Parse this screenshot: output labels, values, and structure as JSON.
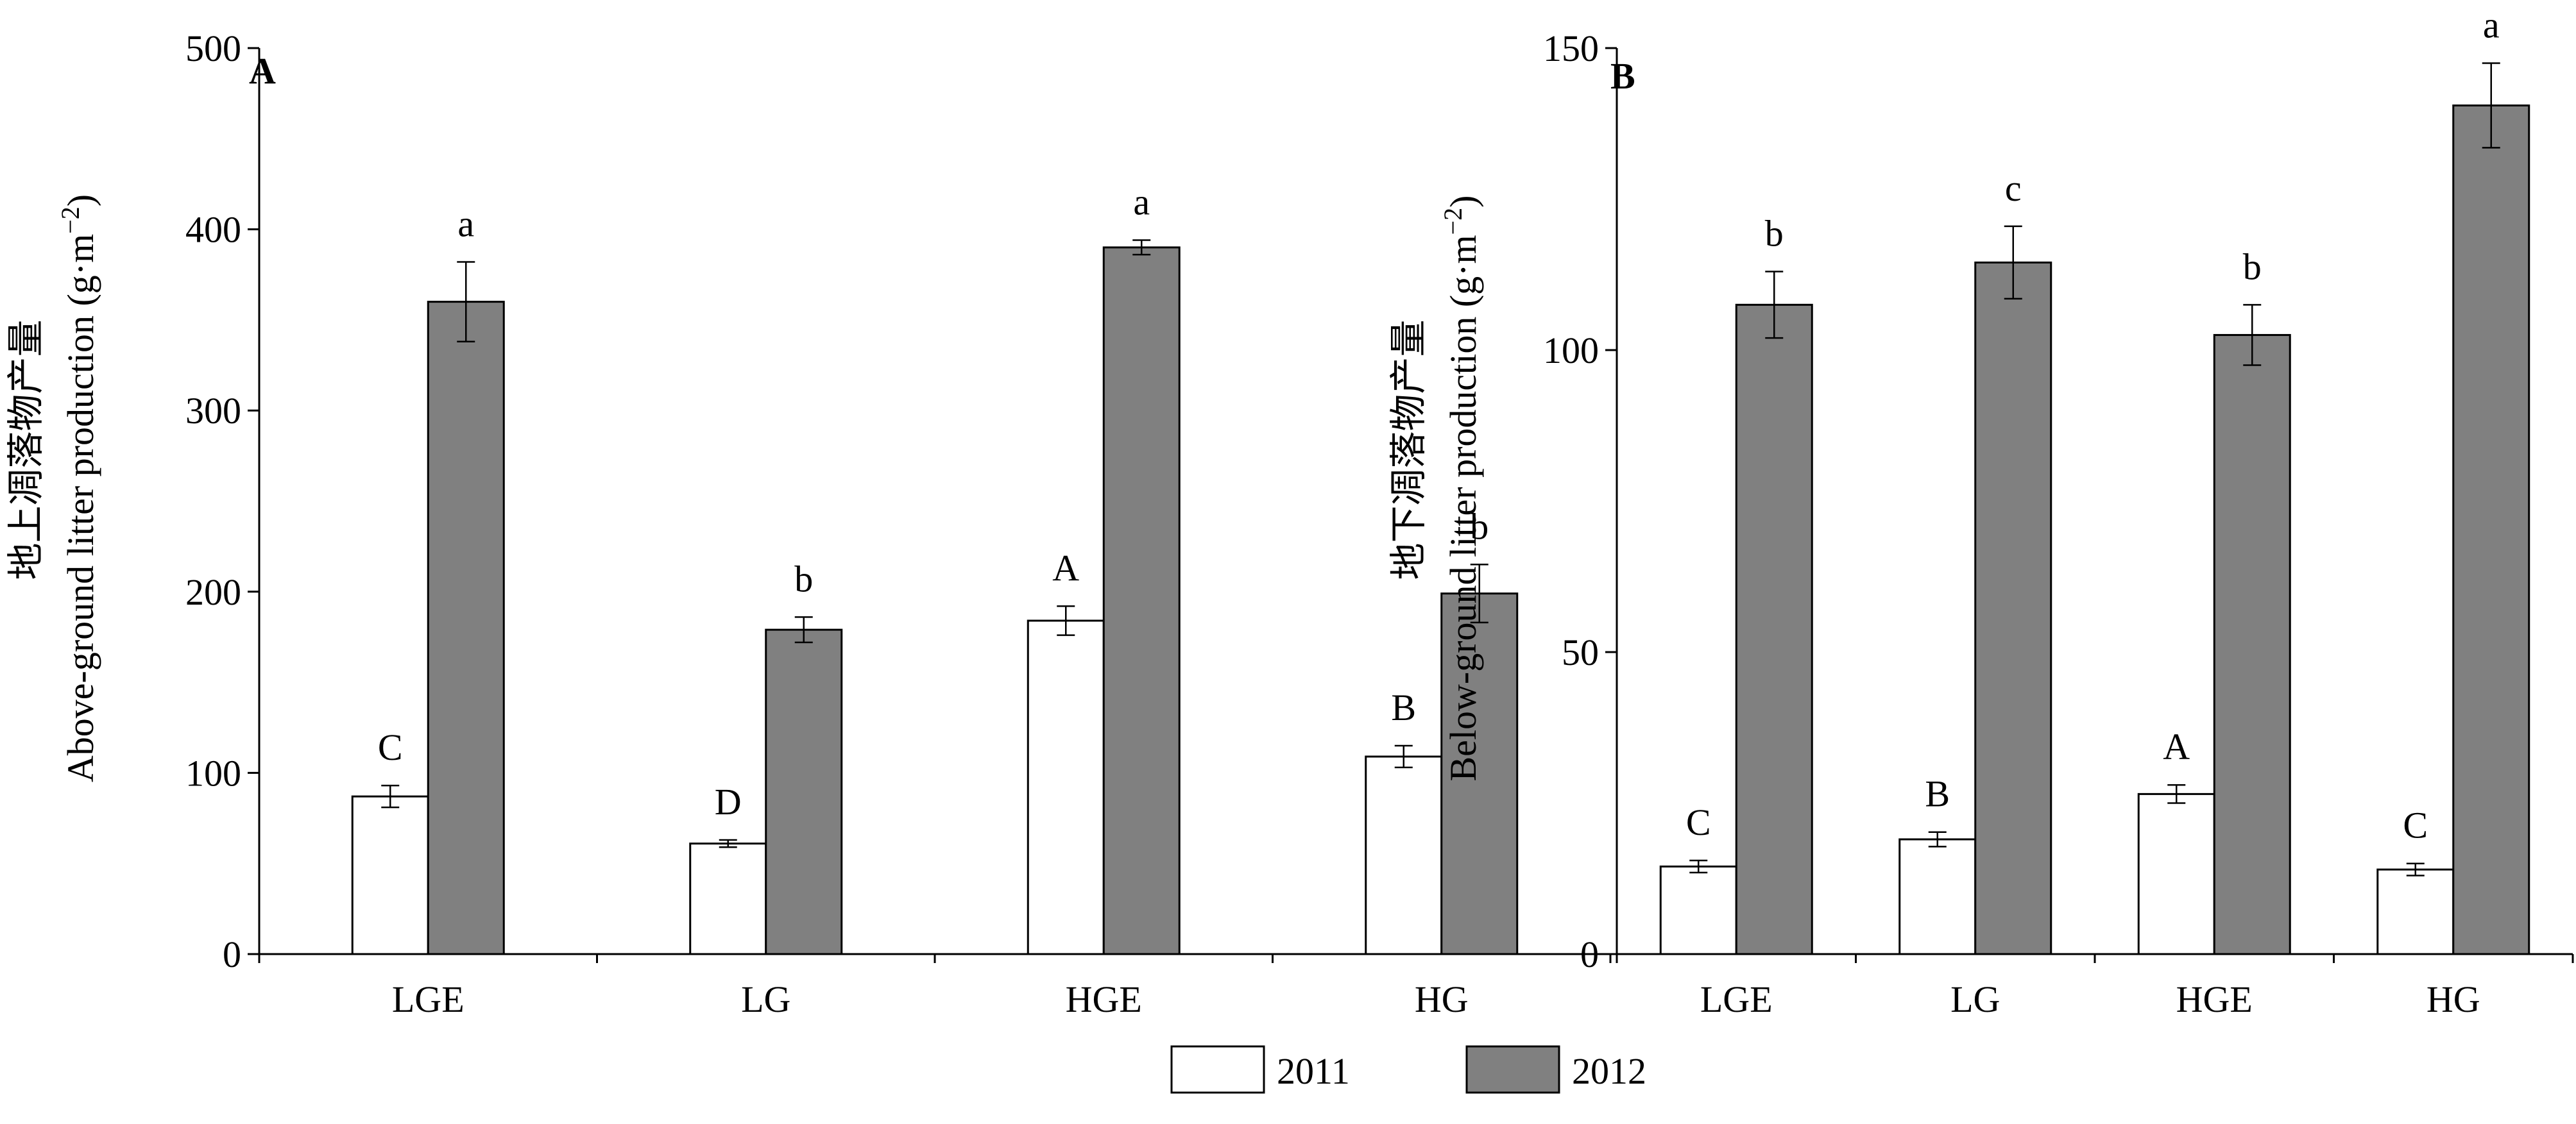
{
  "chart_data": [
    {
      "type": "bar",
      "panel_label": "A",
      "categories": [
        "LGE",
        "LG",
        "HGE",
        "HG"
      ],
      "ylabel_line1": "地上凋落物产量",
      "ylabel_line2_main": "Above-ground litter production (g·m",
      "ylabel_line2_sup": "−2",
      "ylabel_line2_close": ")",
      "ylim": [
        0,
        500
      ],
      "yticks": [
        0,
        100,
        200,
        300,
        400,
        500
      ],
      "series": [
        {
          "name": "2011",
          "color": "#ffffff",
          "values": [
            87,
            61,
            184,
            109
          ],
          "errors": [
            6,
            2,
            8,
            6
          ],
          "letters": [
            "C",
            "D",
            "A",
            "B"
          ]
        },
        {
          "name": "2012",
          "color": "#808080",
          "values": [
            360,
            179,
            390,
            199
          ],
          "errors": [
            22,
            7,
            4,
            16
          ],
          "letters": [
            "a",
            "b",
            "a",
            "b"
          ]
        }
      ]
    },
    {
      "type": "bar",
      "panel_label": "B",
      "categories": [
        "LGE",
        "LG",
        "HGE",
        "HG"
      ],
      "ylabel_line1": "地下凋落物产量",
      "ylabel_line2_main": "Below-ground litter production (g·m",
      "ylabel_line2_sup": "−2",
      "ylabel_line2_close": ")",
      "ylim": [
        0,
        150
      ],
      "yticks": [
        0,
        50,
        100,
        150
      ],
      "series": [
        {
          "name": "2011",
          "color": "#ffffff",
          "values": [
            14.5,
            19,
            26.5,
            14
          ],
          "errors": [
            1,
            1.2,
            1.5,
            1
          ],
          "letters": [
            "C",
            "B",
            "A",
            "C"
          ]
        },
        {
          "name": "2012",
          "color": "#808080",
          "values": [
            107.5,
            114.5,
            102.5,
            140.5
          ],
          "errors": [
            5.5,
            6,
            5,
            7
          ],
          "letters": [
            "b",
            "c",
            "b",
            "a"
          ]
        }
      ]
    }
  ],
  "legend": [
    {
      "label": "2011",
      "color": "#ffffff"
    },
    {
      "label": "2012",
      "color": "#808080"
    }
  ]
}
